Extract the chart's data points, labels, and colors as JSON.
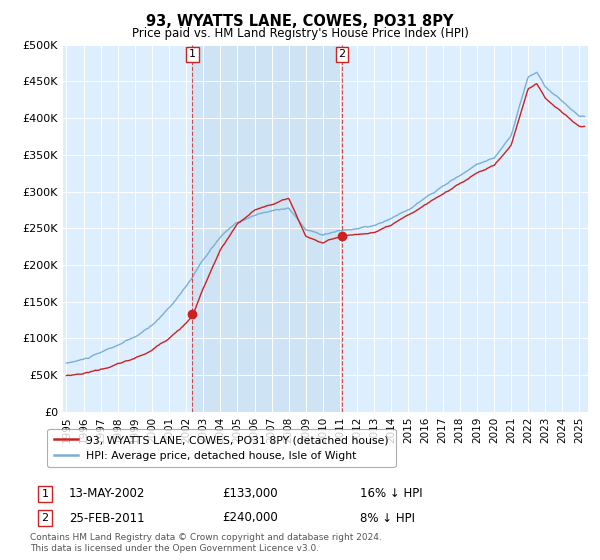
{
  "title": "93, WYATTS LANE, COWES, PO31 8PY",
  "subtitle": "Price paid vs. HM Land Registry's House Price Index (HPI)",
  "ylabel_ticks": [
    "£0",
    "£50K",
    "£100K",
    "£150K",
    "£200K",
    "£250K",
    "£300K",
    "£350K",
    "£400K",
    "£450K",
    "£500K"
  ],
  "ytick_vals": [
    0,
    50000,
    100000,
    150000,
    200000,
    250000,
    300000,
    350000,
    400000,
    450000,
    500000
  ],
  "ylim": [
    0,
    500000
  ],
  "xlim_start": 1994.8,
  "xlim_end": 2025.5,
  "hpi_color": "#7ab0d4",
  "price_color": "#cc2222",
  "background_color": "#ddeeff",
  "shade_color": "#c8dff0",
  "sale1_x": 2002.37,
  "sale1_y": 133000,
  "sale1_label": "1",
  "sale1_date": "13-MAY-2002",
  "sale1_price": "£133,000",
  "sale1_hpi": "16% ↓ HPI",
  "sale2_x": 2011.12,
  "sale2_y": 240000,
  "sale2_label": "2",
  "sale2_date": "25-FEB-2011",
  "sale2_price": "£240,000",
  "sale2_hpi": "8% ↓ HPI",
  "legend_label1": "93, WYATTS LANE, COWES, PO31 8PY (detached house)",
  "legend_label2": "HPI: Average price, detached house, Isle of Wight",
  "footer1": "Contains HM Land Registry data © Crown copyright and database right 2024.",
  "footer2": "This data is licensed under the Open Government Licence v3.0."
}
